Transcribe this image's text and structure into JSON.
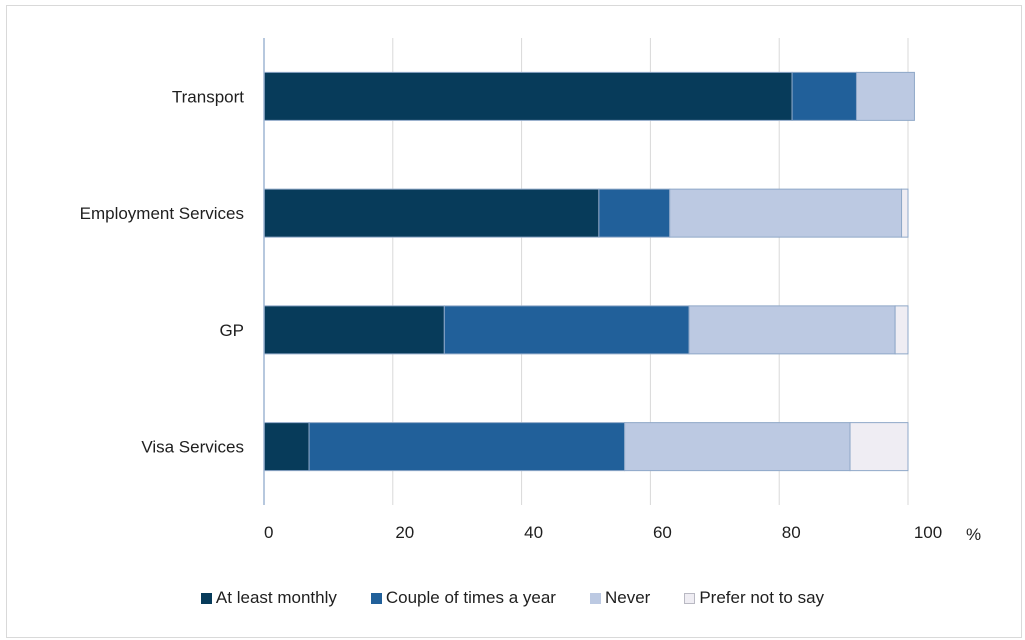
{
  "chart_data": {
    "type": "bar",
    "orientation": "horizontal",
    "stacked": true,
    "categories": [
      "Transport",
      "Employment Services",
      "GP",
      "Visa Services"
    ],
    "series": [
      {
        "name": "At least monthly",
        "color": "#073b5a",
        "values": [
          82,
          52,
          28,
          7
        ]
      },
      {
        "name": "Couple of times a year",
        "color": "#21609a",
        "values": [
          10,
          11,
          38,
          49
        ]
      },
      {
        "name": "Never",
        "color": "#bcc9e2",
        "values": [
          9,
          36,
          32,
          35
        ]
      },
      {
        "name": "Prefer not to say",
        "color": "#efedf3",
        "values": [
          0,
          1,
          2,
          9
        ]
      }
    ],
    "xlim": [
      0,
      100
    ],
    "xticks": [
      0,
      20,
      40,
      60,
      80,
      100
    ],
    "xunit": "%",
    "grid": true,
    "legend_position": "bottom"
  }
}
